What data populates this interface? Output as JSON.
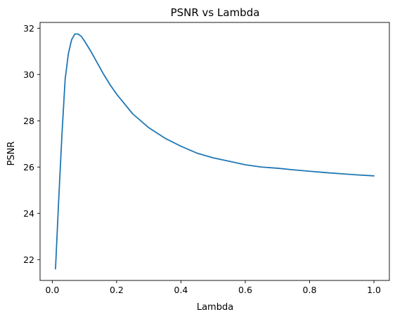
{
  "chart_data": {
    "type": "line",
    "title": "PSNR vs Lambda",
    "xlabel": "Lambda",
    "ylabel": "PSNR",
    "xlim": [
      -0.038,
      1.048
    ],
    "ylim": [
      21.1,
      32.25
    ],
    "xticks": [
      0.0,
      0.2,
      0.4,
      0.6,
      0.8,
      1.0
    ],
    "xtick_labels": [
      "0.0",
      "0.2",
      "0.4",
      "0.6",
      "0.8",
      "1.0"
    ],
    "yticks": [
      22,
      24,
      26,
      28,
      30,
      32
    ],
    "ytick_labels": [
      "22",
      "24",
      "26",
      "28",
      "30",
      "32"
    ],
    "grid": false,
    "series": [
      {
        "color": "#1f77b4",
        "x": [
          0.01,
          0.02,
          0.03,
          0.04,
          0.05,
          0.06,
          0.07,
          0.08,
          0.09,
          0.1,
          0.12,
          0.14,
          0.16,
          0.18,
          0.2,
          0.25,
          0.3,
          0.35,
          0.4,
          0.45,
          0.5,
          0.55,
          0.6,
          0.65,
          0.7,
          0.75,
          0.8,
          0.85,
          0.9,
          0.95,
          1.0
        ],
        "y": [
          21.6,
          24.6,
          27.4,
          29.8,
          30.9,
          31.5,
          31.75,
          31.75,
          31.65,
          31.45,
          31.0,
          30.5,
          30.0,
          29.55,
          29.15,
          28.3,
          27.7,
          27.25,
          26.9,
          26.6,
          26.4,
          26.25,
          26.1,
          26.0,
          25.95,
          25.88,
          25.82,
          25.76,
          25.71,
          25.66,
          25.62
        ]
      }
    ]
  }
}
